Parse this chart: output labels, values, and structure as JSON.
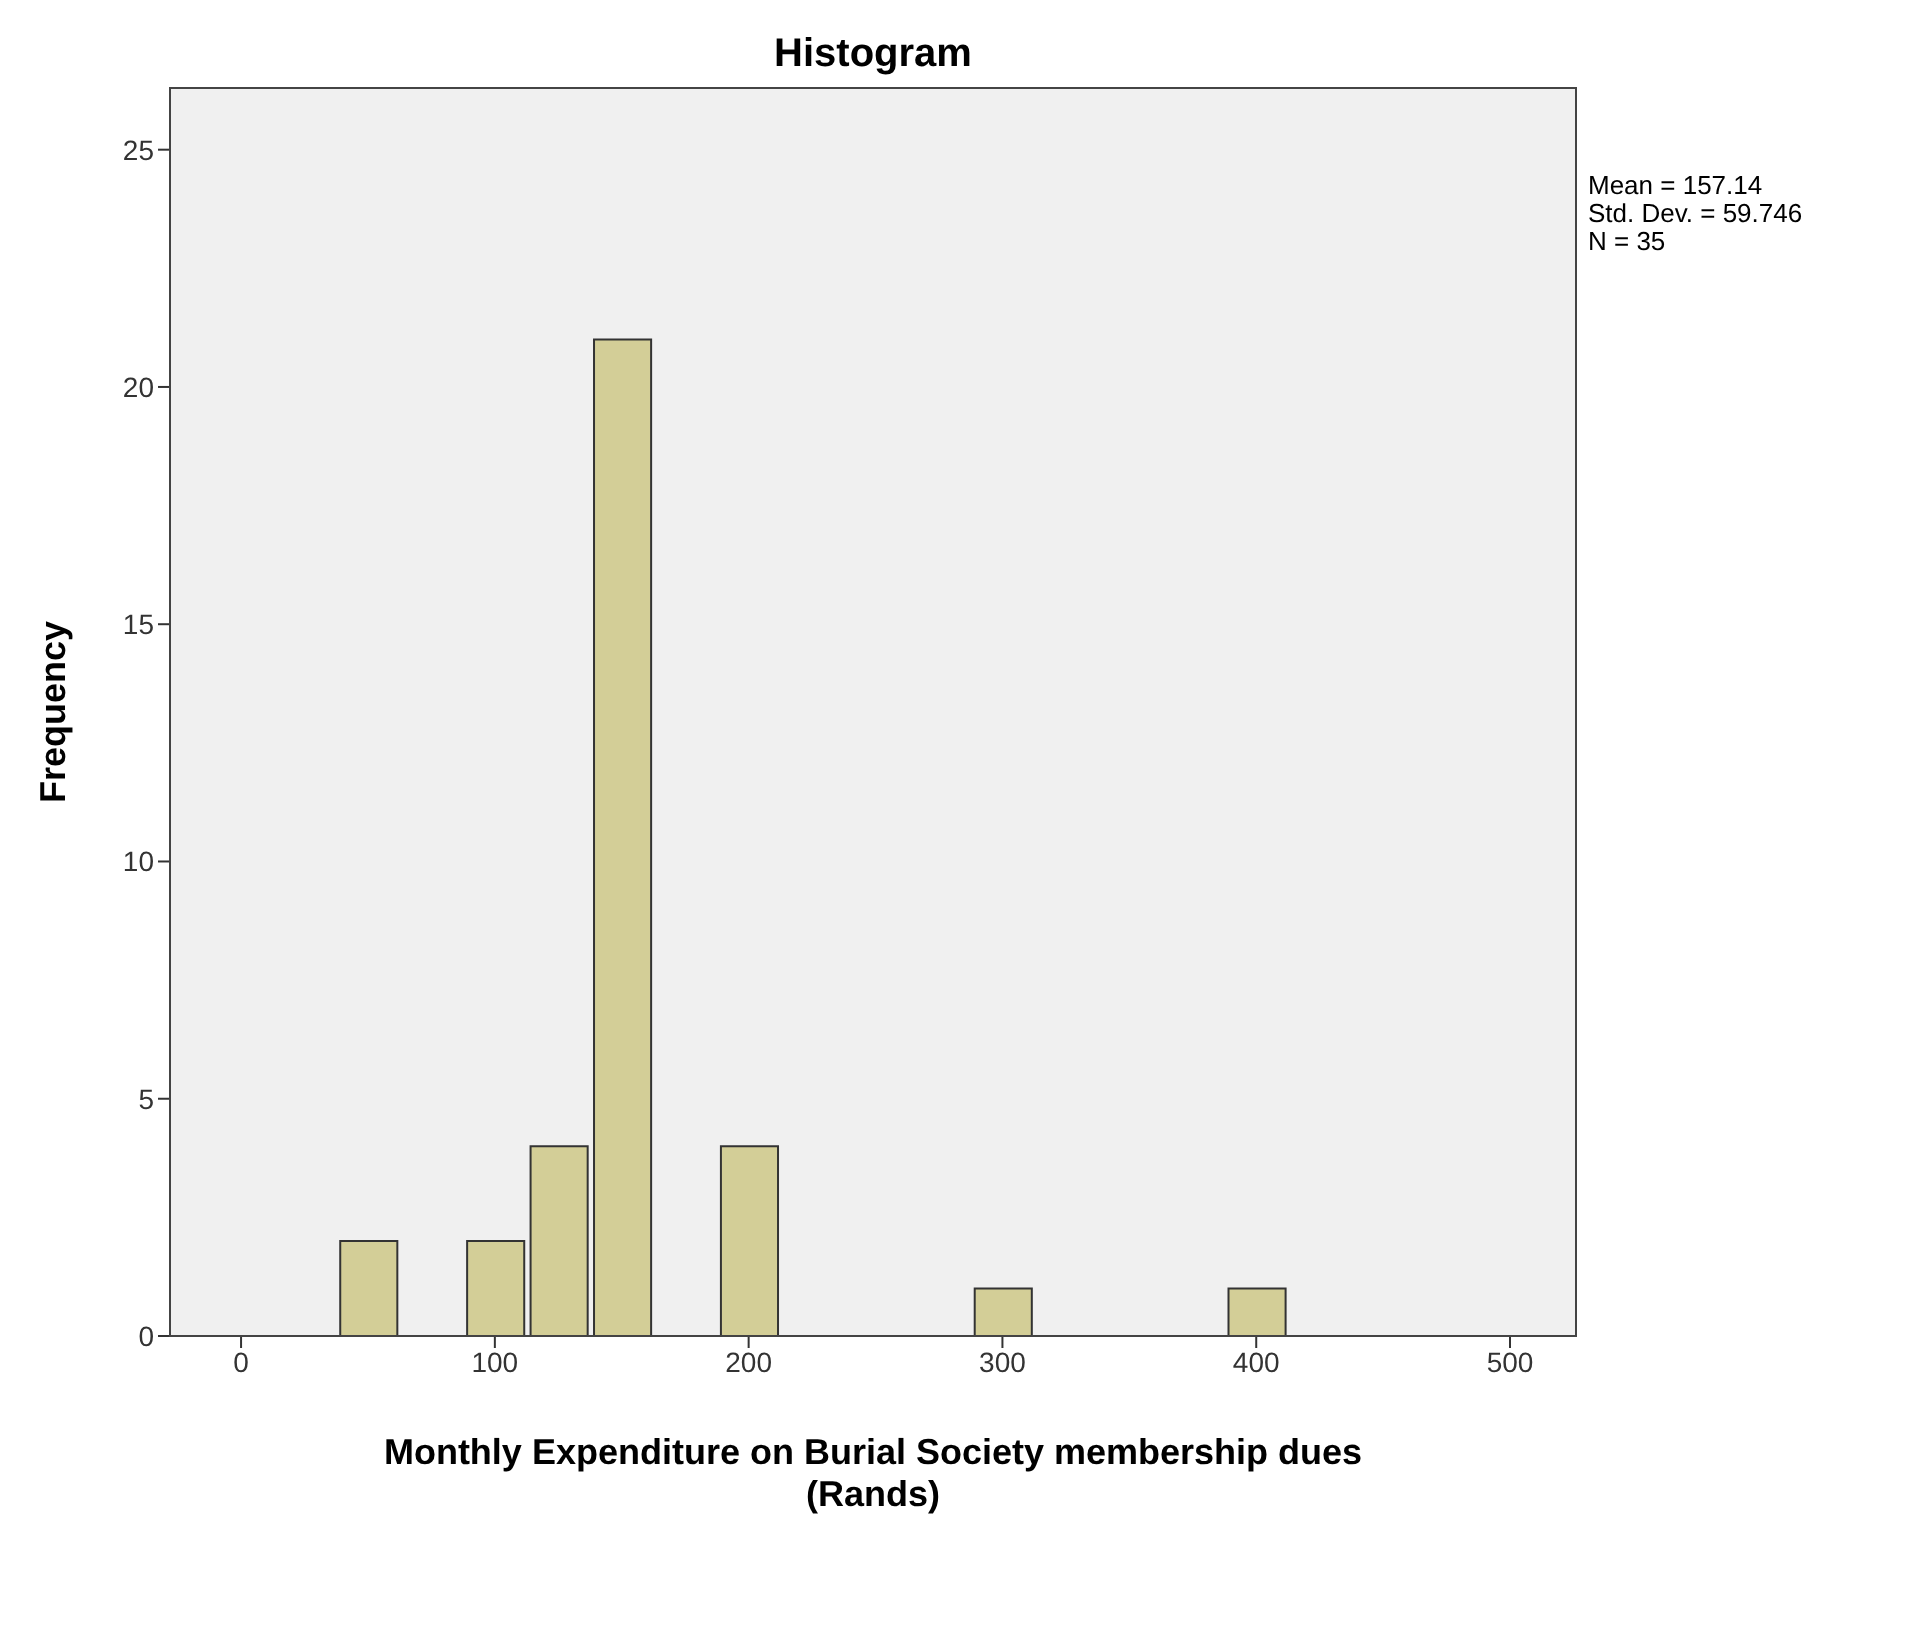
{
  "chart_data": {
    "type": "histogram",
    "title": "Histogram",
    "xlabel": "Monthly Expenditure on Burial Society membership dues (Rands)",
    "ylabel": "Frequency",
    "bins": [
      37.5,
      62.5,
      87.5,
      112.5,
      137.5,
      162.5,
      187.5,
      212.5,
      237.5,
      262.5,
      287.5,
      312.5,
      337.5,
      362.5,
      387.5,
      412.5
    ],
    "values": [
      2,
      0,
      2,
      4,
      21,
      0,
      4,
      0,
      0,
      0,
      1,
      0,
      0,
      0,
      1
    ],
    "color": "#d3ce97",
    "xlim": [
      -28,
      526
    ],
    "xticks": [
      0,
      100,
      200,
      300,
      400,
      500
    ],
    "ylim": [
      0,
      26.3
    ],
    "yticks": [
      0,
      5,
      10,
      15,
      20,
      25
    ],
    "grid": false,
    "annotations": [
      "Mean = 157.14",
      "Std. Dev. = 59.746",
      "N = 35"
    ]
  }
}
